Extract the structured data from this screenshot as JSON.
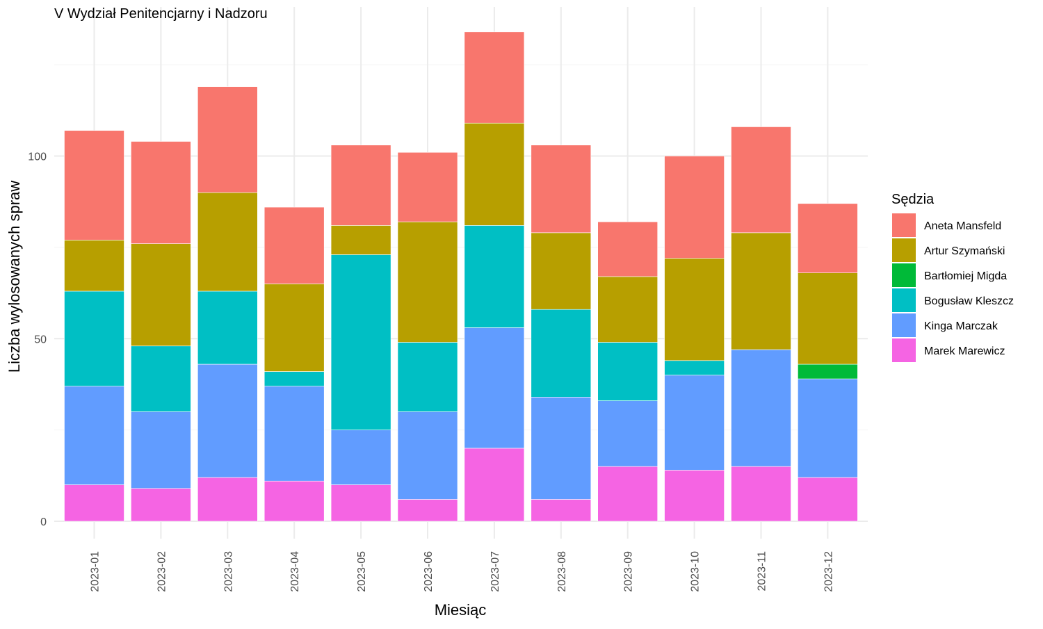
{
  "chart_data": {
    "type": "bar",
    "stacked": true,
    "title": "V Wydział Penitencjarny i Nadzoru",
    "xlabel": "Miesiąc",
    "ylabel": "Liczba wylosowanych spraw",
    "ylim": [
      0,
      140
    ],
    "yticks": [
      0,
      50,
      100
    ],
    "grid": true,
    "legend_position": "right",
    "legend_title": "Sędzia",
    "categories": [
      "2023-01",
      "2023-02",
      "2023-03",
      "2023-04",
      "2023-05",
      "2023-06",
      "2023-07",
      "2023-08",
      "2023-09",
      "2023-10",
      "2023-11",
      "2023-12"
    ],
    "series": [
      {
        "name": "Aneta Mansfeld",
        "color": "#F8766D",
        "values": [
          30,
          28,
          29,
          21,
          22,
          19,
          25,
          24,
          15,
          28,
          29,
          19
        ]
      },
      {
        "name": "Artur Szymański",
        "color": "#B79F00",
        "values": [
          14,
          28,
          27,
          24,
          8,
          33,
          28,
          21,
          18,
          28,
          32,
          25
        ]
      },
      {
        "name": "Bartłomiej Migda",
        "color": "#00BA38",
        "values": [
          0,
          0,
          0,
          0,
          0,
          0,
          0,
          0,
          0,
          0,
          0,
          4
        ]
      },
      {
        "name": "Bogusław Kleszcz",
        "color": "#00BFC4",
        "values": [
          26,
          18,
          20,
          4,
          48,
          19,
          28,
          24,
          16,
          4,
          0,
          0
        ]
      },
      {
        "name": "Kinga Marczak",
        "color": "#619CFF",
        "values": [
          27,
          21,
          31,
          26,
          15,
          24,
          33,
          28,
          18,
          26,
          32,
          27
        ]
      },
      {
        "name": "Marek Marewicz",
        "color": "#F564E3",
        "values": [
          10,
          9,
          12,
          11,
          10,
          6,
          20,
          6,
          15,
          14,
          15,
          12
        ]
      }
    ]
  }
}
